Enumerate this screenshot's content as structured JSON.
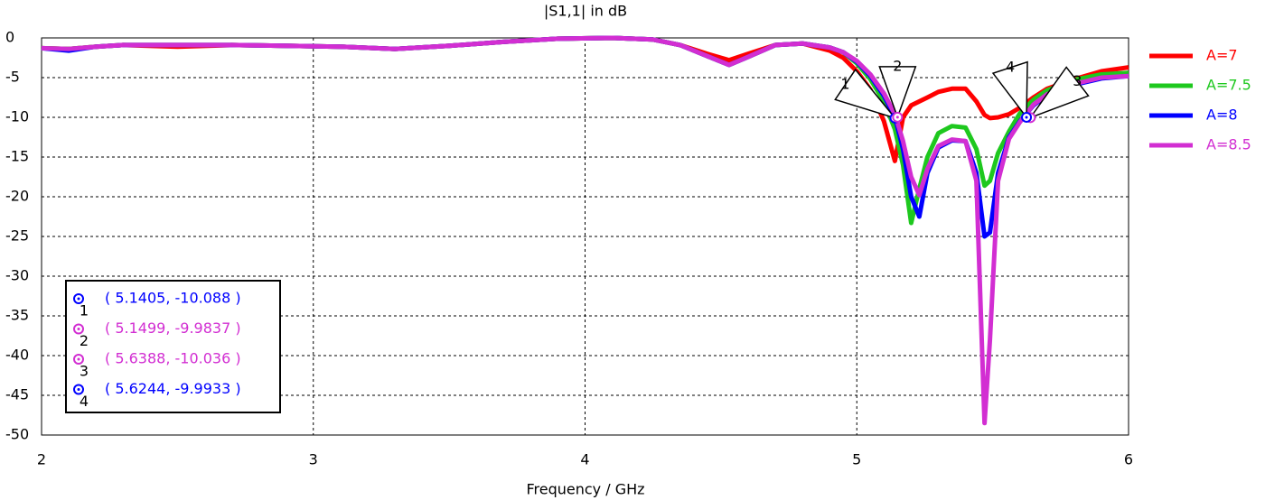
{
  "chart_data": {
    "type": "line",
    "title": "|S1,1| in dB",
    "x_label": "Frequency / GHz",
    "x": [
      2.0,
      2.1,
      2.2,
      2.3,
      2.5,
      2.7,
      2.9,
      3.1,
      3.3,
      3.5,
      3.7,
      3.9,
      4.1,
      4.25,
      4.35,
      4.45,
      4.53,
      4.6,
      4.7,
      4.8,
      4.9,
      4.95,
      5.0,
      5.05,
      5.1,
      5.14,
      5.17,
      5.2,
      5.23,
      5.26,
      5.3,
      5.35,
      5.4,
      5.44,
      5.47,
      5.49,
      5.52,
      5.56,
      5.6,
      5.65,
      5.7,
      5.8,
      5.9,
      6.0
    ],
    "series": [
      {
        "name": "A=7",
        "color": "#ff0000",
        "values": [
          -1.3,
          -1.4,
          -1.1,
          -0.9,
          -1.1,
          -0.9,
          -1.0,
          -1.1,
          -1.4,
          -1.0,
          -0.5,
          -0.1,
          0,
          -0.2,
          -0.9,
          -2.0,
          -2.8,
          -2.0,
          -0.9,
          -0.7,
          -1.6,
          -2.5,
          -4.2,
          -6.5,
          -10.5,
          -15.5,
          -10,
          -8.5,
          -8,
          -7.5,
          -6.8,
          -6.4,
          -6.4,
          -8,
          -9.7,
          -10.1,
          -10,
          -9.6,
          -8.8,
          -7.5,
          -6.4,
          -5.2,
          -4.2,
          -3.7
        ]
      },
      {
        "name": "A=7.5",
        "color": "#1ec81e",
        "values": [
          -1.3,
          -1.4,
          -1.1,
          -0.9,
          -0.9,
          -0.9,
          -1.0,
          -1.1,
          -1.4,
          -1.0,
          -0.5,
          -0.1,
          0,
          -0.2,
          -0.9,
          -2.3,
          -3.4,
          -2.4,
          -0.9,
          -0.7,
          -1.2,
          -1.8,
          -3.2,
          -5.2,
          -8,
          -11.5,
          -16,
          -23.3,
          -19,
          -15,
          -12,
          -11.1,
          -11.3,
          -14,
          -18.6,
          -18,
          -14.5,
          -11.8,
          -9.5,
          -7.8,
          -6.6,
          -5.3,
          -4.6,
          -4.4
        ]
      },
      {
        "name": "A=8",
        "color": "#0000ff",
        "values": [
          -1.3,
          -1.6,
          -1.1,
          -0.9,
          -0.9,
          -0.9,
          -1.0,
          -1.1,
          -1.4,
          -1.0,
          -0.5,
          -0.1,
          0,
          -0.2,
          -0.9,
          -2.3,
          -3.4,
          -2.4,
          -0.9,
          -0.7,
          -1.2,
          -1.8,
          -3.0,
          -4.8,
          -7.3,
          -10,
          -14,
          -20,
          -22.5,
          -17,
          -13.8,
          -12.9,
          -13,
          -17,
          -25,
          -24.5,
          -17,
          -12.5,
          -10.5,
          -8.5,
          -7.2,
          -5.9,
          -5.1,
          -4.8
        ]
      },
      {
        "name": "A=8.5",
        "color": "#d22ed2",
        "values": [
          -1.3,
          -1.4,
          -1.1,
          -0.9,
          -0.9,
          -0.9,
          -1.0,
          -1.1,
          -1.4,
          -1.0,
          -0.5,
          -0.1,
          0,
          -0.2,
          -0.9,
          -2.3,
          -3.4,
          -2.4,
          -0.9,
          -0.7,
          -1.2,
          -1.8,
          -2.9,
          -4.6,
          -7,
          -9.6,
          -13,
          -17.5,
          -19.8,
          -16.5,
          -13.6,
          -12.8,
          -13,
          -18,
          -48.5,
          -38,
          -18,
          -12.7,
          -10.6,
          -8.4,
          -7.1,
          -5.8,
          -5.0,
          -4.8
        ]
      }
    ],
    "markers": [
      {
        "label": "1",
        "x": 5.1405,
        "y": -10.088,
        "color": "#0000ff",
        "value_label": "( 5.1405, -10.088 )"
      },
      {
        "label": "2",
        "x": 5.1499,
        "y": -9.9837,
        "color": "#d22ed2",
        "value_label": "( 5.1499, -9.9837 )"
      },
      {
        "label": "3",
        "x": 5.6388,
        "y": -10.036,
        "color": "#d22ed2",
        "value_label": "( 5.6388, -10.036 )"
      },
      {
        "label": "4",
        "x": 5.6244,
        "y": -9.9933,
        "color": "#0000ff",
        "value_label": "( 5.6244, -9.9933 )"
      }
    ],
    "xlim": [
      2,
      6
    ],
    "xticks": [
      2,
      3,
      4,
      5,
      6
    ],
    "ylim": [
      -50,
      0
    ],
    "yticks": [
      0,
      -5,
      -10,
      -15,
      -20,
      -25,
      -30,
      -35,
      -40,
      -45,
      -50
    ],
    "grid": true,
    "legend": "right"
  }
}
